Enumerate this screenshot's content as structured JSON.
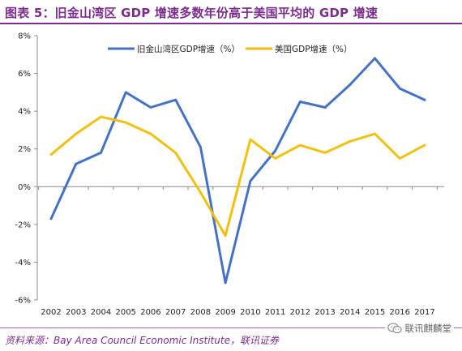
{
  "title": "图表 5：旧金山湾区 GDP 增速多数年份高于美国平均的 GDP 增速",
  "source": "资料来源：Bay Area Council Economic Institute，联讯证券",
  "watermark": {
    "text": "联讯麒麟堂",
    "icon": "wechat-icon"
  },
  "colors": {
    "accent": "#7b2c8c",
    "series_blue": "#4472c4",
    "series_gold": "#f2c10f"
  },
  "chart_data": {
    "type": "line",
    "title": "图表 5：旧金山湾区 GDP 增速多数年份高于美国平均的 GDP 增速",
    "xlabel": "",
    "ylabel": "",
    "x": [
      "2002",
      "2003",
      "2004",
      "2005",
      "2006",
      "2007",
      "2008",
      "2009",
      "2010",
      "2011",
      "2012",
      "2013",
      "2014",
      "2015",
      "2016",
      "2017"
    ],
    "ylim": [
      -6,
      8
    ],
    "yticks": [
      -6,
      -4,
      -2,
      0,
      2,
      4,
      6,
      8
    ],
    "ytick_labels": [
      "-6%",
      "-4%",
      "-2%",
      "0%",
      "2%",
      "4%",
      "6%",
      "8%"
    ],
    "grid": false,
    "legend": "top",
    "series": [
      {
        "name": "旧金山湾区GDP增速（%）",
        "color": "#4472c4",
        "values": [
          -1.7,
          1.2,
          1.8,
          5.0,
          4.2,
          4.6,
          2.1,
          -5.1,
          0.3,
          1.9,
          4.5,
          4.2,
          5.4,
          6.8,
          5.2,
          4.6
        ]
      },
      {
        "name": "美国GDP增速（%）",
        "color": "#f2c10f",
        "values": [
          1.7,
          2.8,
          3.7,
          3.4,
          2.8,
          1.8,
          -0.3,
          -2.6,
          2.5,
          1.5,
          2.2,
          1.8,
          2.4,
          2.8,
          1.5,
          2.2
        ]
      }
    ]
  }
}
